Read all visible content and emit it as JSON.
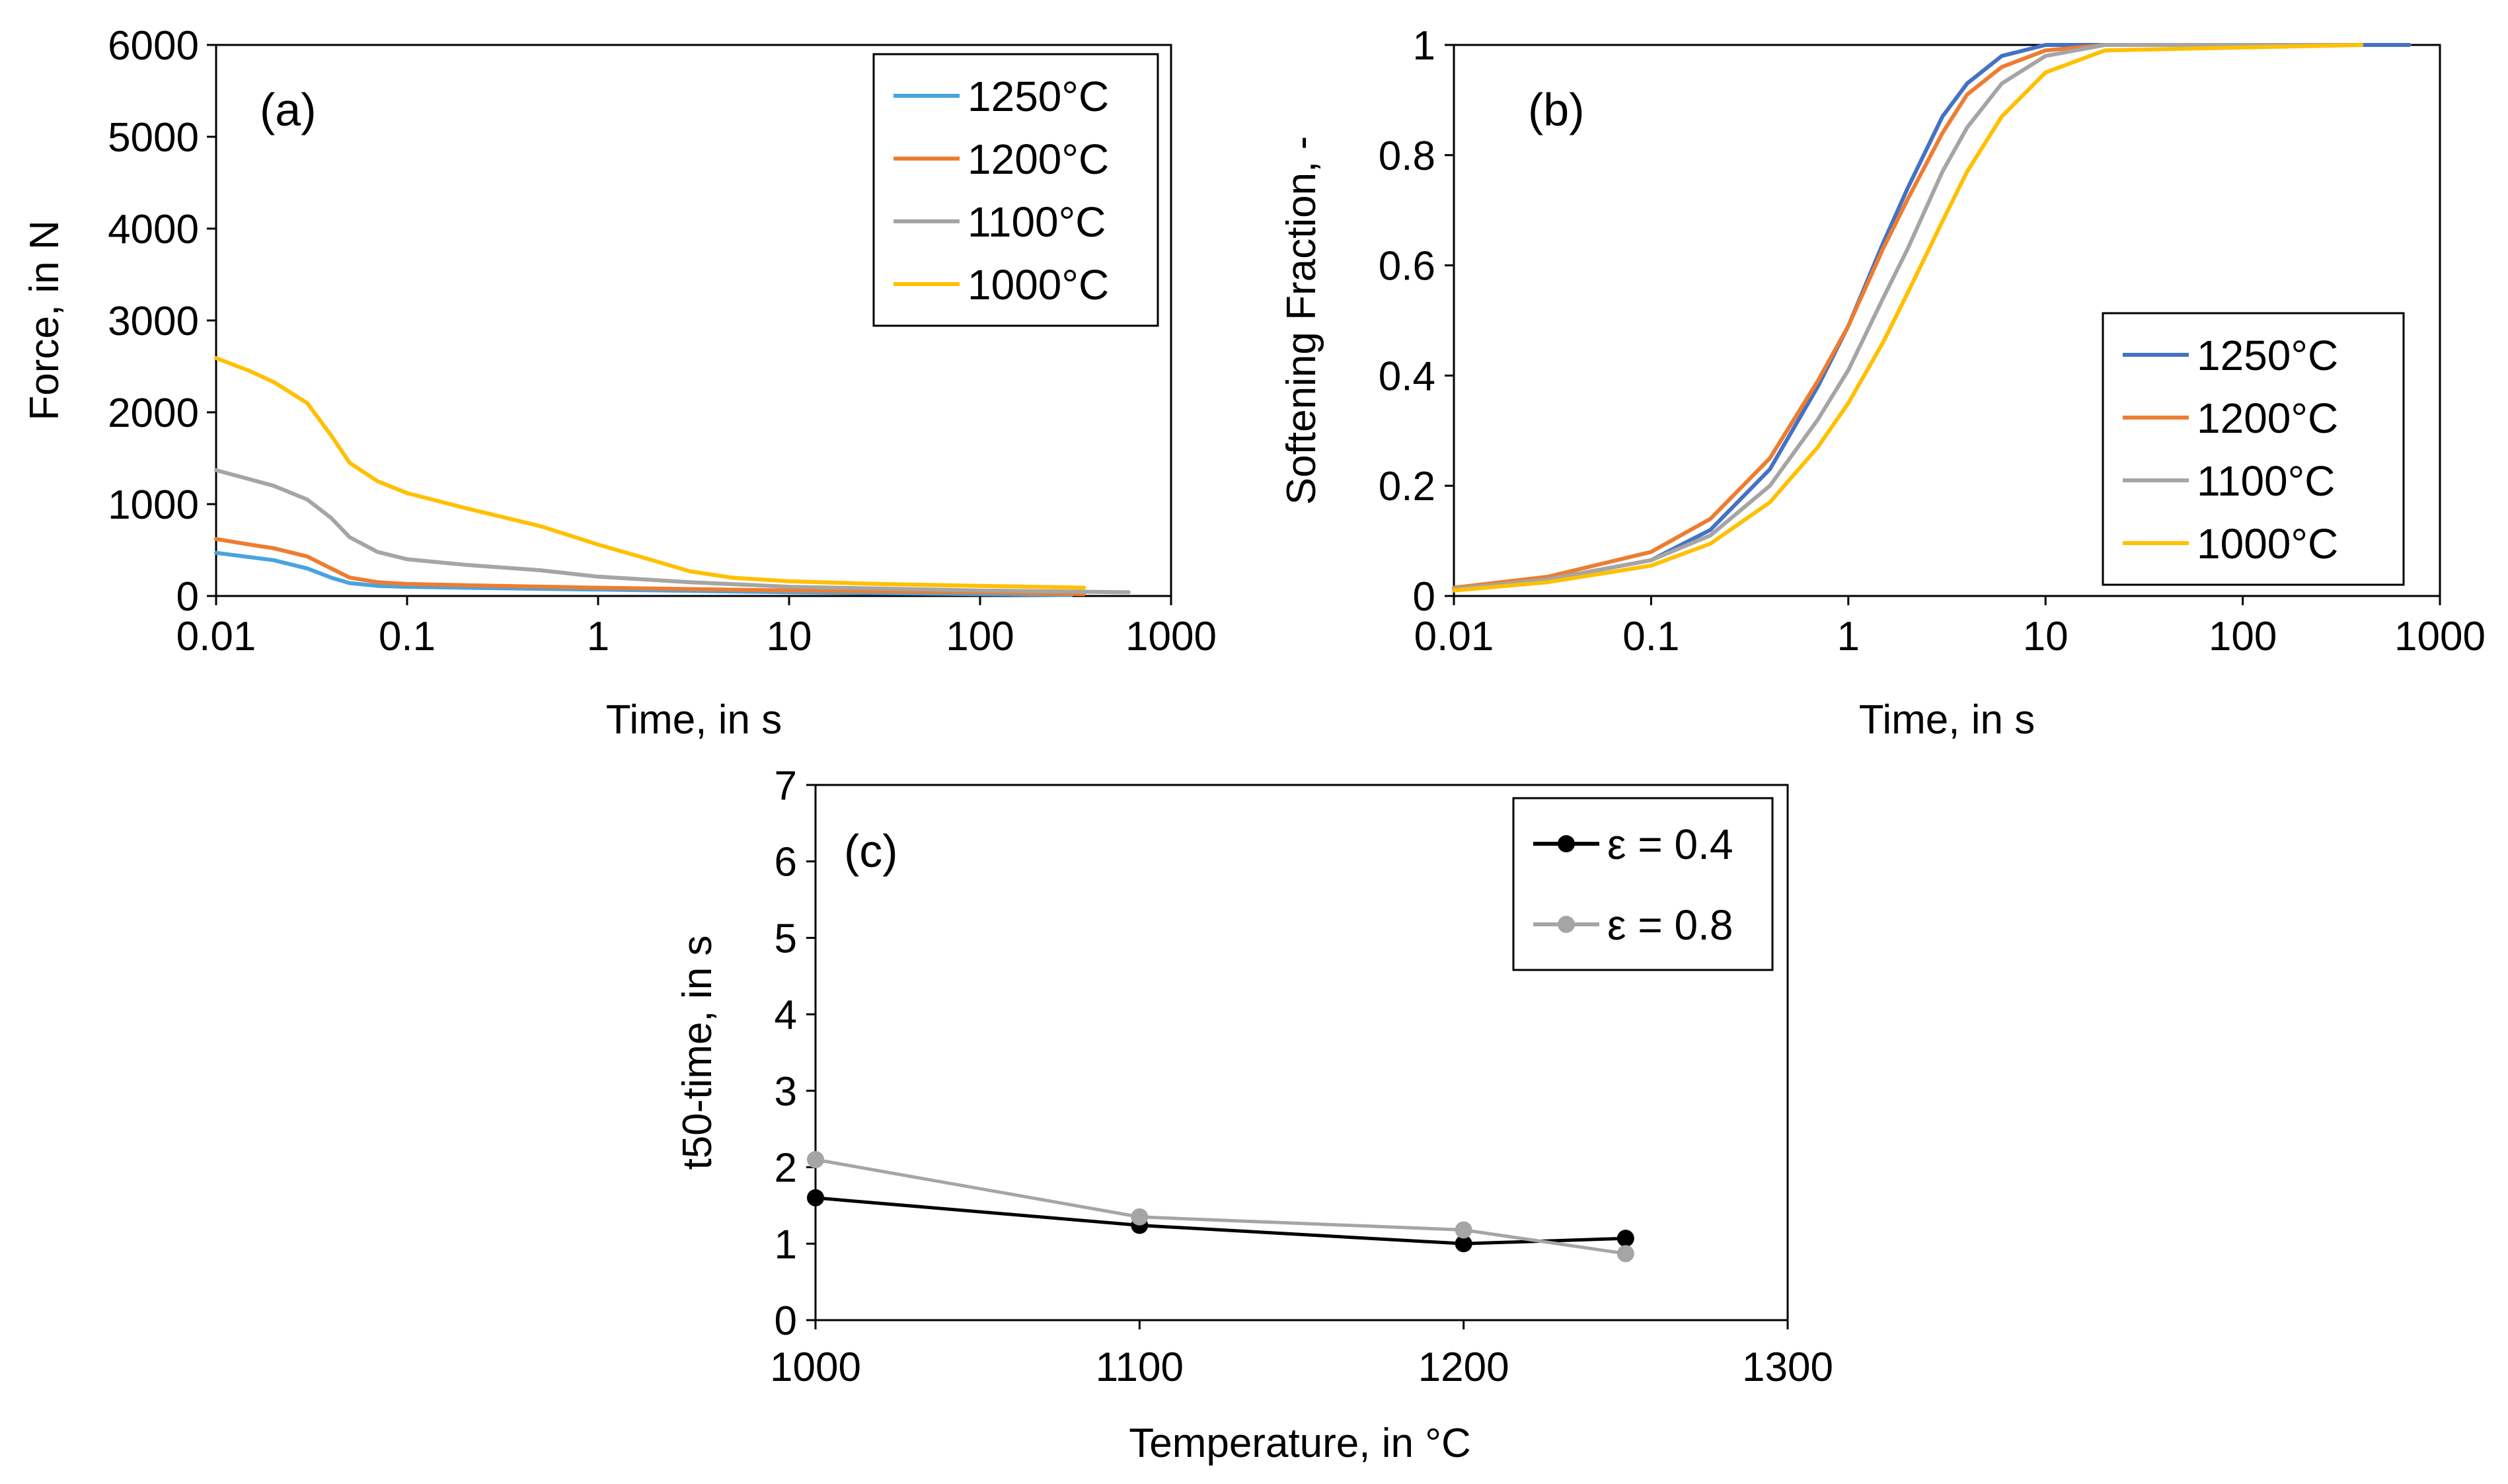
{
  "chart_data": [
    {
      "panel": "a",
      "panel_label": "(a)",
      "type": "line",
      "xlabel": "Time, in s",
      "ylabel": "Force, in N",
      "xscale": "log",
      "xlim": [
        0.01,
        1000
      ],
      "ylim": [
        0,
        6000
      ],
      "xticks": [
        0.01,
        0.1,
        1,
        10,
        100,
        1000
      ],
      "xtick_labels": [
        "0.01",
        "0.1",
        "1",
        "10",
        "100",
        "1000"
      ],
      "yticks": [
        0,
        1000,
        2000,
        3000,
        4000,
        5000,
        6000
      ],
      "ytick_labels": [
        "0",
        "1000",
        "2000",
        "3000",
        "4000",
        "5000",
        "6000"
      ],
      "legend_position": "top-right",
      "series": [
        {
          "name": "1250°C",
          "color": "#4aa3df",
          "x": [
            0.01,
            0.02,
            0.03,
            0.04,
            0.05,
            0.07,
            0.1,
            0.2,
            1,
            10,
            100,
            300
          ],
          "y": [
            470,
            390,
            300,
            200,
            140,
            110,
            100,
            90,
            70,
            40,
            20,
            10
          ]
        },
        {
          "name": "1200°C",
          "color": "#ed7d31",
          "x": [
            0.01,
            0.015,
            0.02,
            0.03,
            0.04,
            0.05,
            0.07,
            0.1,
            0.3,
            1,
            10,
            100,
            350
          ],
          "y": [
            620,
            560,
            520,
            430,
            300,
            200,
            150,
            130,
            110,
            90,
            60,
            40,
            20
          ]
        },
        {
          "name": "1100°C",
          "color": "#a5a5a5",
          "x": [
            0.01,
            0.02,
            0.03,
            0.04,
            0.05,
            0.07,
            0.1,
            0.2,
            0.5,
            1,
            3,
            10,
            100,
            600
          ],
          "y": [
            1370,
            1200,
            1050,
            850,
            640,
            480,
            400,
            340,
            280,
            210,
            150,
            100,
            60,
            40
          ]
        },
        {
          "name": "1000°C",
          "color": "#ffc000",
          "x": [
            0.01,
            0.015,
            0.02,
            0.03,
            0.04,
            0.05,
            0.07,
            0.1,
            0.2,
            0.5,
            1,
            2,
            3,
            5,
            10,
            30,
            100,
            350
          ],
          "y": [
            2590,
            2450,
            2330,
            2100,
            1750,
            1450,
            1250,
            1120,
            960,
            760,
            560,
            380,
            270,
            200,
            160,
            130,
            110,
            90
          ]
        }
      ]
    },
    {
      "panel": "b",
      "panel_label": "(b)",
      "type": "line",
      "xlabel": "Time, in s",
      "ylabel": "Softening Fraction, -",
      "xscale": "log",
      "xlim": [
        0.01,
        1000
      ],
      "ylim": [
        0,
        1
      ],
      "xticks": [
        0.01,
        0.1,
        1,
        10,
        100,
        1000
      ],
      "xtick_labels": [
        "0.01",
        "0.1",
        "1",
        "10",
        "100",
        "1000"
      ],
      "yticks": [
        0,
        0.2,
        0.4,
        0.6,
        0.8,
        1
      ],
      "ytick_labels": [
        "0",
        "0.2",
        "0.4",
        "0.6",
        "0.8",
        "1"
      ],
      "legend_position": "center-right",
      "series": [
        {
          "name": "1250°C",
          "color": "#4472c4",
          "x": [
            0.01,
            0.03,
            0.1,
            0.2,
            0.4,
            0.7,
            1,
            1.5,
            2,
            3,
            4,
            6,
            10,
            20,
            700
          ],
          "y": [
            0.015,
            0.03,
            0.065,
            0.12,
            0.23,
            0.38,
            0.49,
            0.64,
            0.74,
            0.87,
            0.93,
            0.98,
            1.0,
            1.0,
            1.0
          ]
        },
        {
          "name": "1200°C",
          "color": "#ed7d31",
          "x": [
            0.01,
            0.03,
            0.1,
            0.2,
            0.4,
            0.7,
            1,
            1.5,
            2,
            3,
            4,
            6,
            10,
            20,
            400
          ],
          "y": [
            0.015,
            0.035,
            0.08,
            0.14,
            0.25,
            0.39,
            0.49,
            0.63,
            0.72,
            0.84,
            0.91,
            0.96,
            0.99,
            1.0,
            1.0
          ]
        },
        {
          "name": "1100°C",
          "color": "#a5a5a5",
          "x": [
            0.01,
            0.03,
            0.1,
            0.2,
            0.4,
            0.7,
            1,
            1.5,
            2,
            3,
            4,
            6,
            10,
            20,
            400
          ],
          "y": [
            0.013,
            0.03,
            0.065,
            0.11,
            0.2,
            0.32,
            0.41,
            0.54,
            0.63,
            0.77,
            0.85,
            0.93,
            0.98,
            1.0,
            1.0
          ]
        },
        {
          "name": "1000°C",
          "color": "#ffc000",
          "x": [
            0.01,
            0.03,
            0.1,
            0.2,
            0.4,
            0.7,
            1,
            1.5,
            2,
            3,
            4,
            6,
            10,
            20,
            400
          ],
          "y": [
            0.01,
            0.025,
            0.055,
            0.095,
            0.17,
            0.27,
            0.35,
            0.46,
            0.55,
            0.68,
            0.77,
            0.87,
            0.95,
            0.99,
            1.0
          ]
        }
      ]
    },
    {
      "panel": "c",
      "panel_label": "(c)",
      "type": "line",
      "markers": true,
      "xlabel": "Temperature, in °C",
      "ylabel": "t50-time, in s",
      "xscale": "linear",
      "xlim": [
        1000,
        1300
      ],
      "ylim": [
        0,
        7
      ],
      "xticks": [
        1000,
        1100,
        1200,
        1300
      ],
      "xtick_labels": [
        "1000",
        "1100",
        "1200",
        "1300"
      ],
      "yticks": [
        0,
        1,
        2,
        3,
        4,
        5,
        6,
        7
      ],
      "ytick_labels": [
        "0",
        "1",
        "2",
        "3",
        "4",
        "5",
        "6",
        "7"
      ],
      "legend_position": "top-right",
      "series": [
        {
          "name": "ε =  0.4",
          "color": "#000000",
          "x": [
            1000,
            1100,
            1200,
            1250
          ],
          "y": [
            1.6,
            1.24,
            1.0,
            1.07
          ]
        },
        {
          "name": "ε =  0.8",
          "color": "#a5a5a5",
          "x": [
            1000,
            1100,
            1200,
            1250
          ],
          "y": [
            2.1,
            1.35,
            1.18,
            0.87
          ]
        }
      ]
    }
  ]
}
